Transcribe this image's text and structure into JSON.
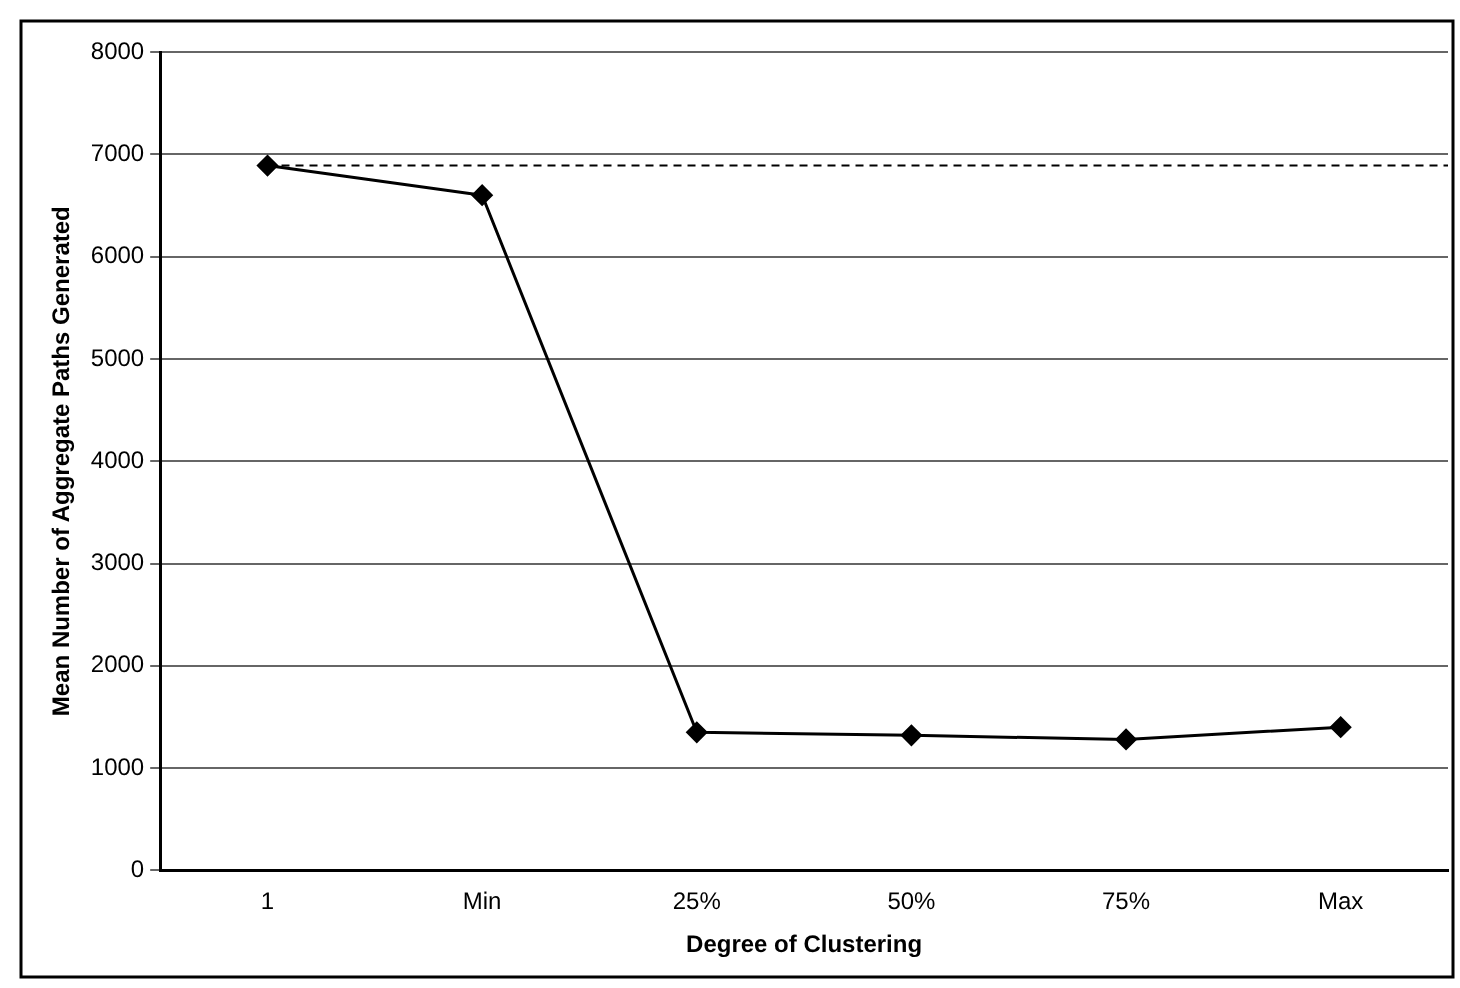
{
  "chart_data": {
    "type": "line",
    "xlabel": "Degree of Clustering",
    "ylabel": "Mean Number of Aggregate Paths Generated",
    "categories": [
      "1",
      "Min",
      "25%",
      "50%",
      "75%",
      "Max"
    ],
    "series": [
      {
        "color": "#000000",
        "values": [
          6890,
          6600,
          1350,
          1320,
          1280,
          1400
        ]
      }
    ],
    "ylim": [
      0,
      8000
    ],
    "yticks": [
      0,
      1000,
      2000,
      3000,
      4000,
      5000,
      6000,
      7000,
      8000
    ],
    "grid": "y",
    "legend": false,
    "marker": "diamond",
    "line_style": "solid",
    "ref_lines": [
      {
        "axis": "y",
        "value": 6890,
        "color": "#000000",
        "line_style": "dashed"
      }
    ]
  }
}
